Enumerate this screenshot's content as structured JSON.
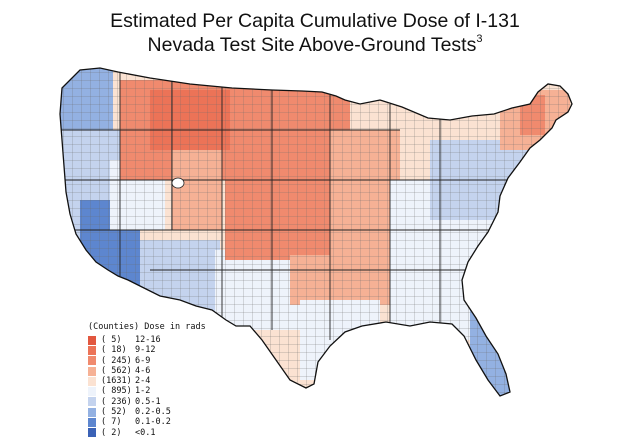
{
  "title": {
    "line1": "Estimated Per Capita Cumulative Dose of I-131",
    "line2": "Nevada Test Site Above-Ground Tests",
    "footnote": "3"
  },
  "legend": {
    "header": "(Counties) Dose in rads",
    "entries": [
      {
        "count": "( 5)",
        "range": "12-16",
        "color": "#e2573f"
      },
      {
        "count": "( 18)",
        "range": "9-12",
        "color": "#ec7357"
      },
      {
        "count": "( 245)",
        "range": "6-9",
        "color": "#f08a6e"
      },
      {
        "count": "( 562)",
        "range": "4-6",
        "color": "#f6b195"
      },
      {
        "count": "(1631)",
        "range": "2-4",
        "color": "#fbe2d2"
      },
      {
        "count": "( 895)",
        "range": "1-2",
        "color": "#eef3fb"
      },
      {
        "count": "( 236)",
        "range": "0.5-1",
        "color": "#c4d3ee"
      },
      {
        "count": "( 52)",
        "range": "0.2-0.5",
        "color": "#93b1e2"
      },
      {
        "count": "( 7)",
        "range": "0.1-0.2",
        "color": "#5d86cf"
      },
      {
        "count": "( 2)",
        "range": "<0.1",
        "color": "#3b62b6"
      }
    ]
  }
}
